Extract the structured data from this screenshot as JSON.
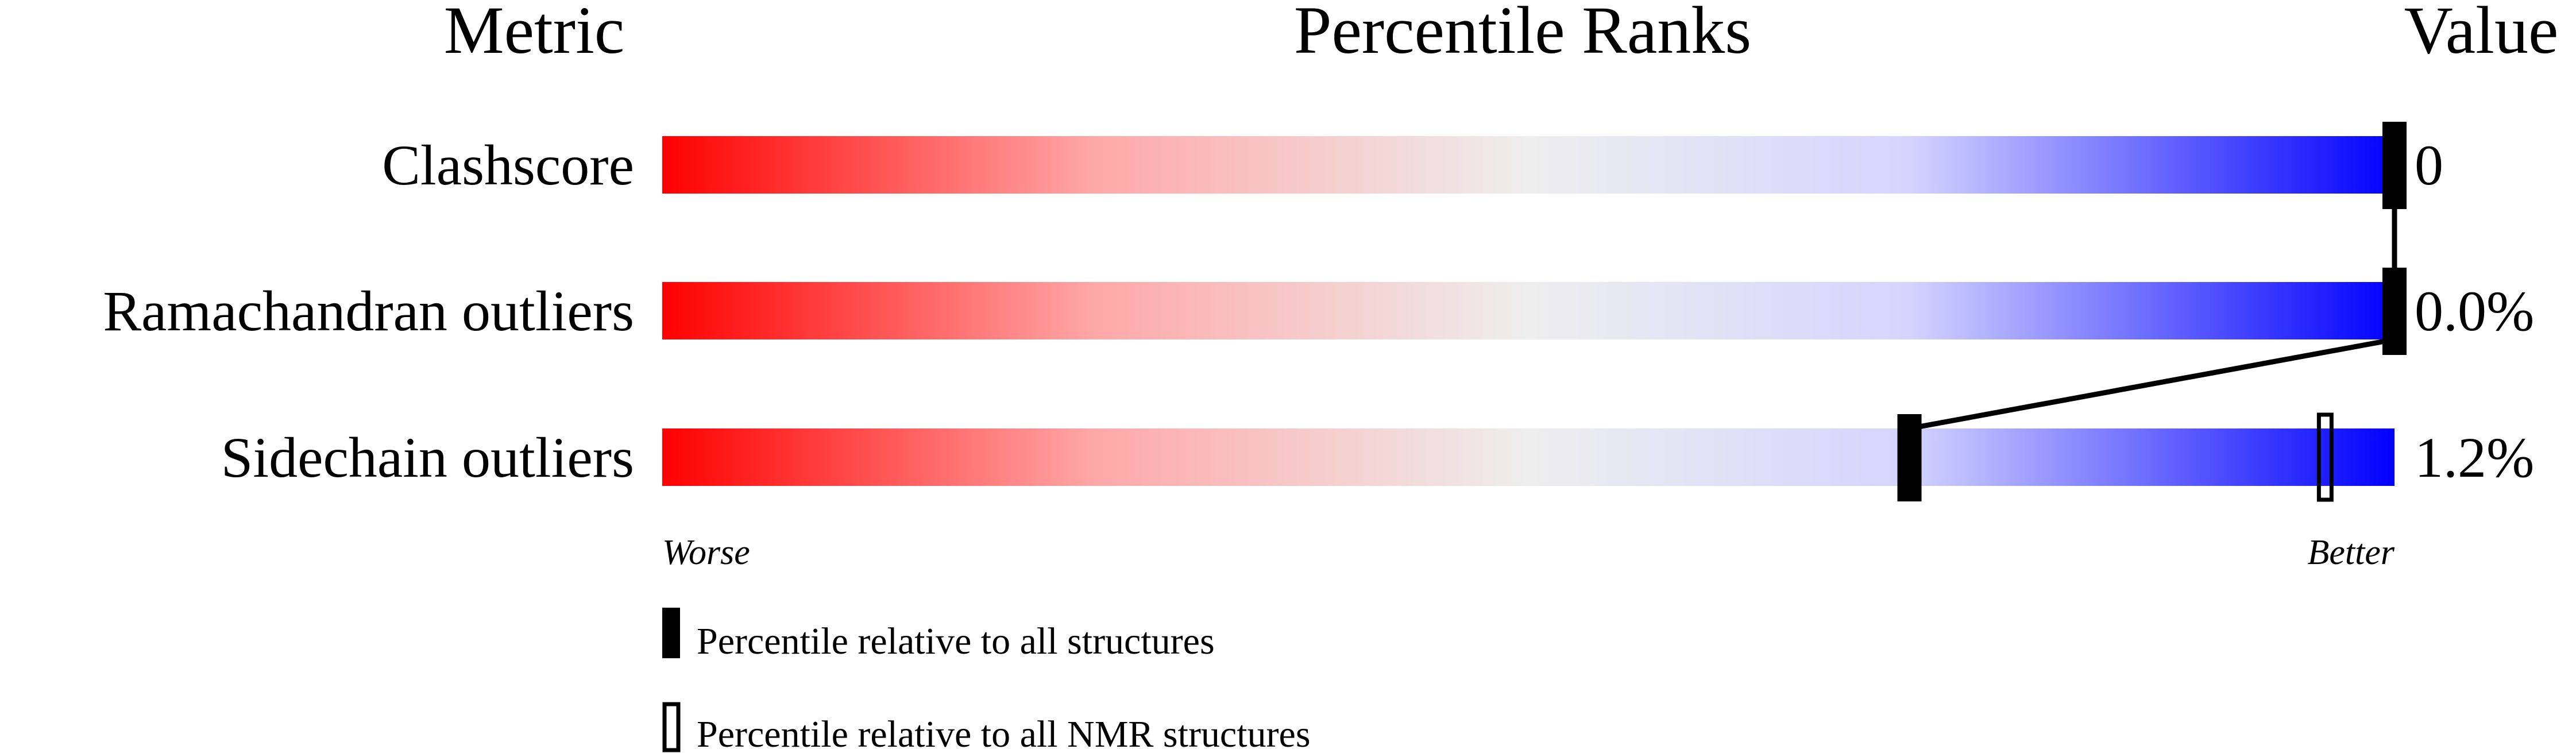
{
  "chart_data": {
    "type": "percentile-slider",
    "headers": {
      "metric": "Metric",
      "ranks": "Percentile Ranks",
      "value": "Value"
    },
    "xlim": [
      0,
      100
    ],
    "metrics": [
      {
        "name": "Clashscore",
        "value": "0",
        "percentile_all": 100,
        "percentile_nmr": null
      },
      {
        "name": "Ramachandran outliers",
        "value": "0.0%",
        "percentile_all": 100,
        "percentile_nmr": null
      },
      {
        "name": "Sidechain outliers",
        "value": "1.2%",
        "percentile_all": 72,
        "percentile_nmr": 96
      }
    ],
    "axis_labels": {
      "worse": "Worse",
      "better": "Better"
    },
    "legend": [
      {
        "marker": "filled",
        "label": "Percentile relative to all structures"
      },
      {
        "marker": "outline",
        "label": "Percentile relative to all NMR structures"
      }
    ],
    "colors": {
      "worse": "#ff0000",
      "middle": "#eeeeee",
      "better": "#0000ff",
      "marker": "#000000"
    }
  }
}
